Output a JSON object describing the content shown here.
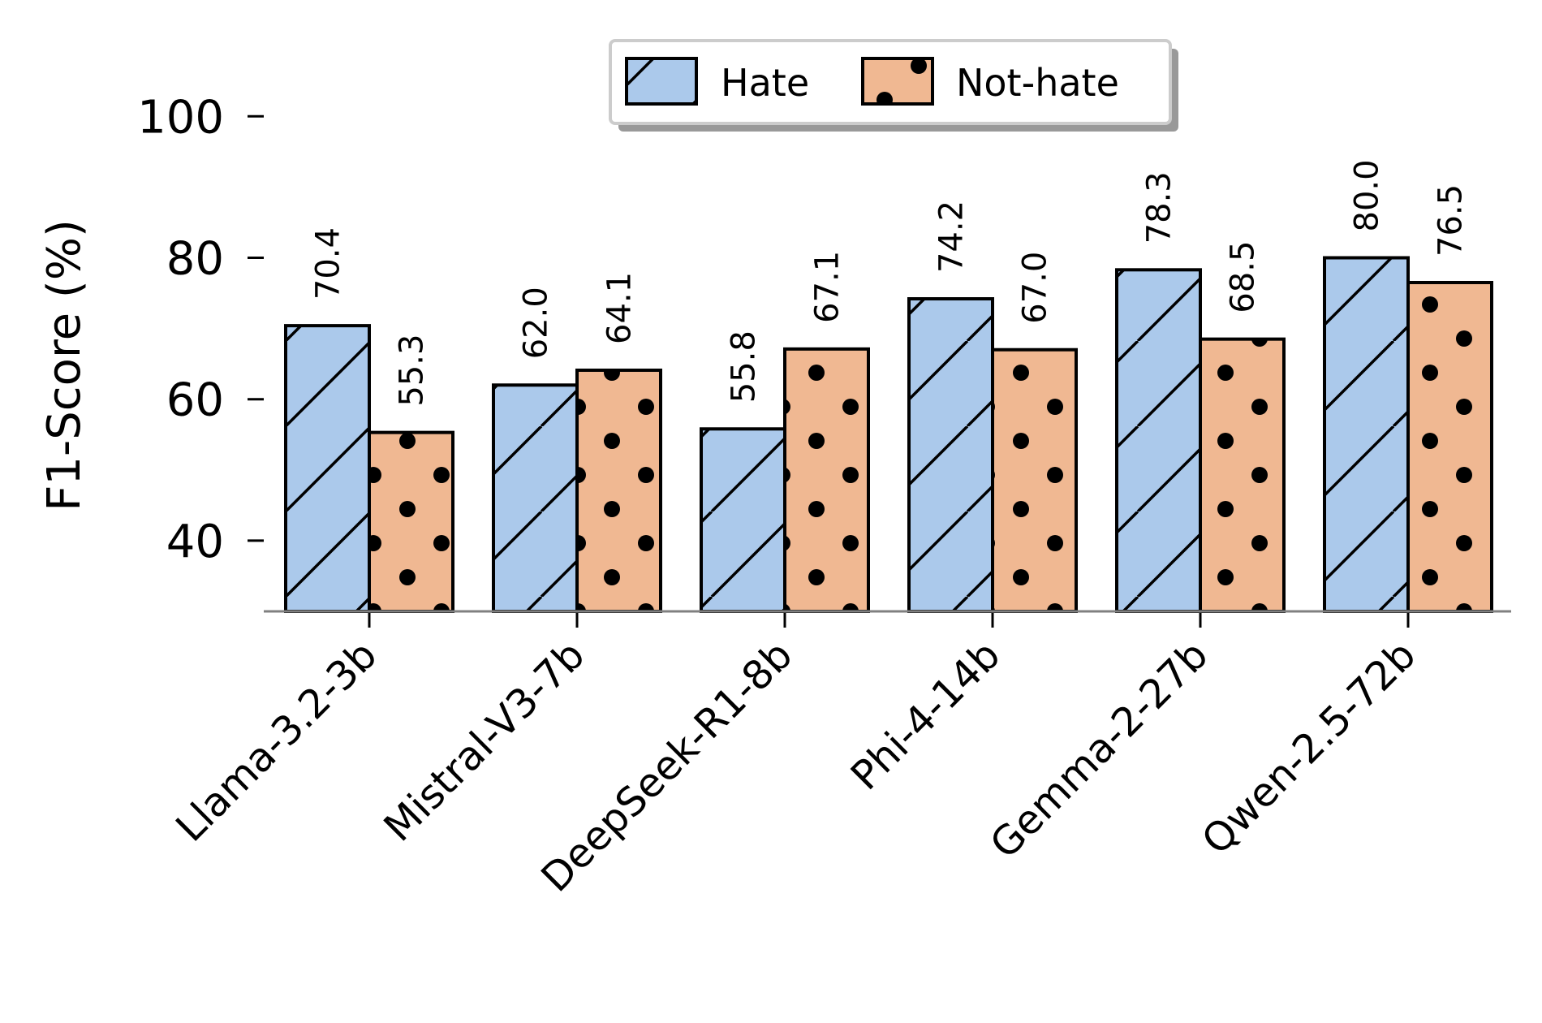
{
  "chart_data": {
    "type": "bar",
    "categories": [
      "Llama-3.2-3b",
      "Mistral-V3-7b",
      "DeepSeek-R1-8b",
      "Phi-4-14b",
      "Gemma-2-27b",
      "Qwen-2.5-72b"
    ],
    "series": [
      {
        "name": "Hate",
        "values": [
          70.4,
          62.0,
          55.8,
          74.2,
          78.3,
          80.0
        ],
        "color": "#abc9eb",
        "hatch": "diagonal"
      },
      {
        "name": "Not-hate",
        "values": [
          55.3,
          64.1,
          67.1,
          67.0,
          68.5,
          76.5
        ],
        "color": "#f0b892",
        "hatch": "dots"
      }
    ],
    "ylabel": "F1-Score (%)",
    "xlabel": "",
    "ylim": [
      30,
      100
    ],
    "yticks": [
      "40",
      "60",
      "80",
      "100"
    ],
    "value_labels": [
      [
        "70.4",
        "62.0",
        "55.8",
        "74.2",
        "78.3",
        "80.0"
      ],
      [
        "55.3",
        "64.1",
        "67.1",
        "67.0",
        "68.5",
        "76.5"
      ]
    ],
    "legend": {
      "labels": [
        "Hate",
        "Not-hate"
      ],
      "placement": "top-center"
    },
    "grid": false
  }
}
